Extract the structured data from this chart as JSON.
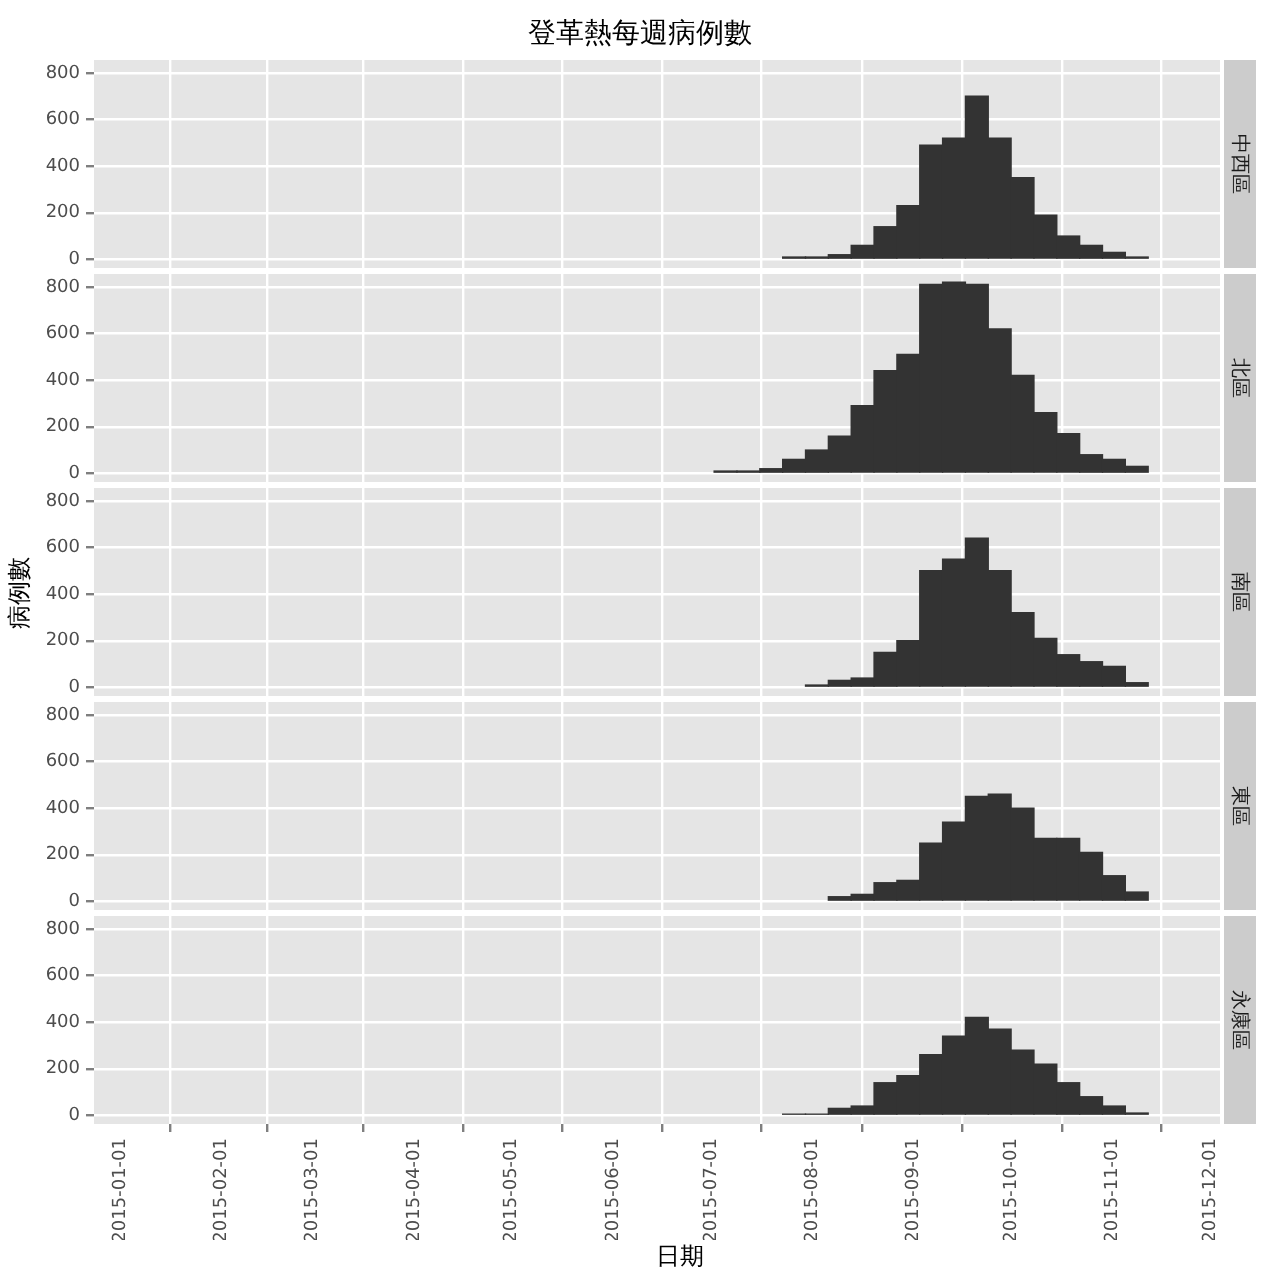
{
  "chart_data": [
    {
      "type": "histogram",
      "title": "登革熱每週病例數",
      "subtitle": "中西區",
      "color": "#333333",
      "grid": true,
      "tick_labels": "y",
      "bins": [
        "2015-07-23",
        "2015-07-30",
        "2015-08-06",
        "2015-08-13",
        "2015-08-20",
        "2015-08-27",
        "2015-09-03",
        "2015-09-10",
        "2015-09-17",
        "2015-09-24",
        "2015-10-01",
        "2015-10-08",
        "2015-10-15",
        "2015-10-22",
        "2015-10-29",
        "2015-11-05",
        "2015-11-12"
      ],
      "values": [
        10,
        10,
        20,
        60,
        140,
        230,
        490,
        520,
        700,
        520,
        350,
        190,
        100,
        60,
        30,
        10
      ],
      "xlim": [
        "2014-12-24",
        "2015-12-04"
      ],
      "xticks": [
        "2015-01-01",
        "2015-02-01",
        "2015-03-01",
        "2015-04-01",
        "2015-05-01",
        "2015-06-01",
        "2015-07-01",
        "2015-08-01",
        "2015-09-01",
        "2015-10-01",
        "2015-11-01",
        "2015-12-01"
      ],
      "ylim": [
        -37,
        855
      ],
      "yticks": [
        0,
        200,
        400,
        600,
        800
      ]
    },
    {
      "type": "histogram",
      "subtitle": "北區",
      "color": "#333333",
      "grid": true,
      "tick_labels": "y",
      "bins": [
        "2015-07-02",
        "2015-07-09",
        "2015-07-16",
        "2015-07-23",
        "2015-07-30",
        "2015-08-06",
        "2015-08-13",
        "2015-08-20",
        "2015-08-27",
        "2015-09-03",
        "2015-09-10",
        "2015-09-17",
        "2015-09-24",
        "2015-10-01",
        "2015-10-08",
        "2015-10-15",
        "2015-10-22",
        "2015-10-29",
        "2015-11-05",
        "2015-11-12"
      ],
      "values": [
        10,
        10,
        20,
        60,
        100,
        160,
        290,
        440,
        510,
        810,
        820,
        810,
        620,
        420,
        260,
        170,
        80,
        60,
        30
      ],
      "xlim": [
        "2014-12-24",
        "2015-12-04"
      ],
      "xticks": [
        "2015-01-01",
        "2015-02-01",
        "2015-03-01",
        "2015-04-01",
        "2015-05-01",
        "2015-06-01",
        "2015-07-01",
        "2015-08-01",
        "2015-09-01",
        "2015-10-01",
        "2015-11-01",
        "2015-12-01"
      ],
      "ylim": [
        -37,
        855
      ],
      "yticks": [
        0,
        200,
        400,
        600,
        800
      ]
    },
    {
      "type": "histogram",
      "subtitle": "南區",
      "ylabel": "病例數",
      "color": "#333333",
      "grid": true,
      "tick_labels": "y",
      "bins": [
        "2015-07-30",
        "2015-08-06",
        "2015-08-13",
        "2015-08-20",
        "2015-08-27",
        "2015-09-03",
        "2015-09-10",
        "2015-09-17",
        "2015-09-24",
        "2015-10-01",
        "2015-10-08",
        "2015-10-15",
        "2015-10-22",
        "2015-10-29",
        "2015-11-05",
        "2015-11-12"
      ],
      "values": [
        10,
        30,
        40,
        150,
        200,
        500,
        550,
        640,
        500,
        320,
        210,
        140,
        110,
        90,
        20
      ],
      "xlim": [
        "2014-12-24",
        "2015-12-04"
      ],
      "xticks": [
        "2015-01-01",
        "2015-02-01",
        "2015-03-01",
        "2015-04-01",
        "2015-05-01",
        "2015-06-01",
        "2015-07-01",
        "2015-08-01",
        "2015-09-01",
        "2015-10-01",
        "2015-11-01",
        "2015-12-01"
      ],
      "ylim": [
        -37,
        855
      ],
      "yticks": [
        0,
        200,
        400,
        600,
        800
      ]
    },
    {
      "type": "histogram",
      "subtitle": "東區",
      "color": "#333333",
      "grid": true,
      "tick_labels": "y",
      "bins": [
        "2015-08-06",
        "2015-08-13",
        "2015-08-20",
        "2015-08-27",
        "2015-09-03",
        "2015-09-10",
        "2015-09-17",
        "2015-09-24",
        "2015-10-01",
        "2015-10-08",
        "2015-10-15",
        "2015-10-22",
        "2015-10-29",
        "2015-11-05",
        "2015-11-12"
      ],
      "values": [
        20,
        30,
        80,
        90,
        250,
        340,
        450,
        460,
        400,
        270,
        270,
        210,
        110,
        40
      ],
      "xlim": [
        "2014-12-24",
        "2015-12-04"
      ],
      "xticks": [
        "2015-01-01",
        "2015-02-01",
        "2015-03-01",
        "2015-04-01",
        "2015-05-01",
        "2015-06-01",
        "2015-07-01",
        "2015-08-01",
        "2015-09-01",
        "2015-10-01",
        "2015-11-01",
        "2015-12-01"
      ],
      "ylim": [
        -37,
        855
      ],
      "yticks": [
        0,
        200,
        400,
        600,
        800
      ]
    },
    {
      "type": "histogram",
      "subtitle": "永康區",
      "xlabel": "日期",
      "color": "#333333",
      "grid": true,
      "bins": [
        "2015-07-23",
        "2015-07-30",
        "2015-08-06",
        "2015-08-13",
        "2015-08-20",
        "2015-08-27",
        "2015-09-03",
        "2015-09-10",
        "2015-09-17",
        "2015-09-24",
        "2015-10-01",
        "2015-10-08",
        "2015-10-15",
        "2015-10-22",
        "2015-10-29",
        "2015-11-05",
        "2015-11-12"
      ],
      "values": [
        5,
        5,
        30,
        40,
        140,
        170,
        260,
        340,
        420,
        370,
        280,
        220,
        140,
        80,
        40,
        10
      ],
      "xlim": [
        "2014-12-24",
        "2015-12-04"
      ],
      "xticks": [
        "2015-01-01",
        "2015-02-01",
        "2015-03-01",
        "2015-04-01",
        "2015-05-01",
        "2015-06-01",
        "2015-07-01",
        "2015-08-01",
        "2015-09-01",
        "2015-10-01",
        "2015-11-01",
        "2015-12-01"
      ],
      "ylim": [
        -37,
        855
      ],
      "yticks": [
        0,
        200,
        400,
        600,
        800
      ]
    }
  ]
}
